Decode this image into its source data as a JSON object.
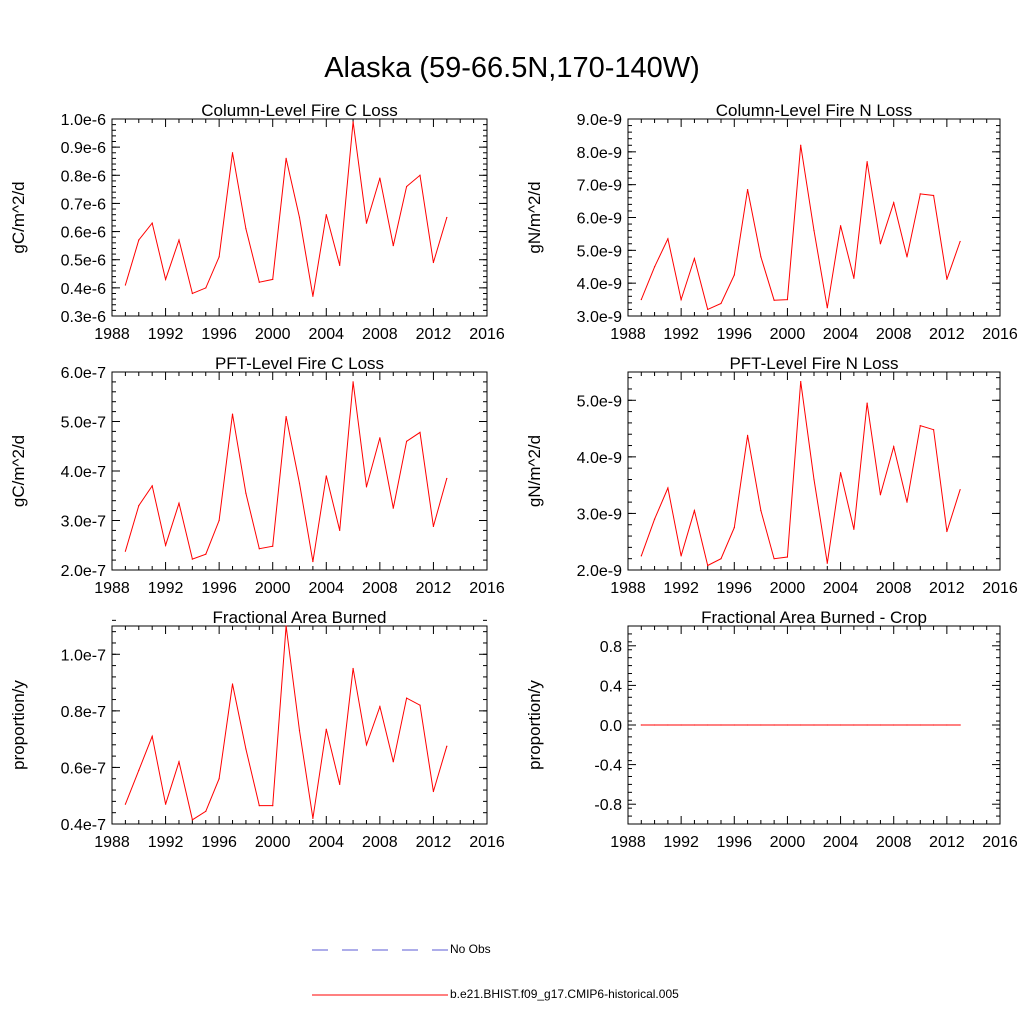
{
  "title": "Alaska (59-66.5N,170-140W)",
  "legend": {
    "items": [
      {
        "label": "No Obs",
        "color": "#5b5bd6",
        "style": "dashed"
      },
      {
        "label": "b.e21.BHIST.f09_g17.CMIP6-historical.005",
        "color": "#ff0000",
        "style": "solid"
      }
    ]
  },
  "chart_data": [
    {
      "type": "line",
      "title": "Column-Level Fire C Loss",
      "xlabel": "",
      "ylabel": "gC/m^2/d",
      "xlim": [
        1988,
        2016
      ],
      "ylim": [
        3e-07,
        1e-06
      ],
      "xticks": [
        "1988",
        "1992",
        "1996",
        "2000",
        "2004",
        "2008",
        "2012",
        "2016"
      ],
      "yticks": [
        {
          "v": 3e-07,
          "label": "0.3e-6"
        },
        {
          "v": 4e-07,
          "label": "0.4e-6"
        },
        {
          "v": 5e-07,
          "label": "0.5e-6"
        },
        {
          "v": 6e-07,
          "label": "0.6e-6"
        },
        {
          "v": 7e-07,
          "label": "0.7e-6"
        },
        {
          "v": 8e-07,
          "label": "0.8e-6"
        },
        {
          "v": 9e-07,
          "label": "0.9e-6"
        },
        {
          "v": 1e-06,
          "label": "1.0e-6"
        }
      ],
      "minor_step": 2e-08,
      "color": "#ff0000",
      "x": [
        1989,
        1990,
        1991,
        1992,
        1993,
        1994,
        1995,
        1996,
        1997,
        1998,
        1999,
        2000,
        2001,
        2002,
        2003,
        2004,
        2005,
        2006,
        2007,
        2008,
        2009,
        2010,
        2011,
        2012,
        2013
      ],
      "y": [
        4.1e-07,
        5.7e-07,
        6.3e-07,
        4.3e-07,
        5.7e-07,
        3.8e-07,
        4e-07,
        5.1e-07,
        8.8e-07,
        6.1e-07,
        4.2e-07,
        4.3e-07,
        8.6e-07,
        6.5e-07,
        3.7e-07,
        6.6e-07,
        4.8e-07,
        9.9e-07,
        6.3e-07,
        7.9e-07,
        5.5e-07,
        7.6e-07,
        8e-07,
        4.9e-07,
        6.5e-07
      ]
    },
    {
      "type": "line",
      "title": "Column-Level Fire N Loss",
      "xlabel": "",
      "ylabel": "gN/m^2/d",
      "xlim": [
        1988,
        2016
      ],
      "ylim": [
        3e-09,
        9e-09
      ],
      "xticks": [
        "1988",
        "1992",
        "1996",
        "2000",
        "2004",
        "2008",
        "2012",
        "2016"
      ],
      "yticks": [
        {
          "v": 3e-09,
          "label": "3.0e-9"
        },
        {
          "v": 4e-09,
          "label": "4.0e-9"
        },
        {
          "v": 5e-09,
          "label": "5.0e-9"
        },
        {
          "v": 6e-09,
          "label": "6.0e-9"
        },
        {
          "v": 7e-09,
          "label": "7.0e-9"
        },
        {
          "v": 8e-09,
          "label": "8.0e-9"
        },
        {
          "v": 9e-09,
          "label": "9.0e-9"
        }
      ],
      "minor_step": 2e-10,
      "color": "#ff0000",
      "x": [
        1989,
        1990,
        1991,
        1992,
        1993,
        1994,
        1995,
        1996,
        1997,
        1998,
        1999,
        2000,
        2001,
        2002,
        2003,
        2004,
        2005,
        2006,
        2007,
        2008,
        2009,
        2010,
        2011,
        2012,
        2013
      ],
      "y": [
        3.5e-09,
        4.5e-09,
        5.35e-09,
        3.5e-09,
        4.75e-09,
        3.2e-09,
        3.38e-09,
        4.25e-09,
        6.85e-09,
        4.8e-09,
        3.48e-09,
        3.5e-09,
        8.2e-09,
        5.6e-09,
        3.25e-09,
        5.75e-09,
        4.15e-09,
        7.7e-09,
        5.2e-09,
        6.45e-09,
        4.8e-09,
        6.72e-09,
        6.67e-09,
        4.12e-09,
        5.27e-09
      ]
    },
    {
      "type": "line",
      "title": "PFT-Level Fire C Loss",
      "xlabel": "",
      "ylabel": "gC/m^2/d",
      "xlim": [
        1988,
        2016
      ],
      "ylim": [
        2e-07,
        6e-07
      ],
      "xticks": [
        "1988",
        "1992",
        "1996",
        "2000",
        "2004",
        "2008",
        "2012",
        "2016"
      ],
      "yticks": [
        {
          "v": 2e-07,
          "label": "2.0e-7"
        },
        {
          "v": 3e-07,
          "label": "3.0e-7"
        },
        {
          "v": 4e-07,
          "label": "4.0e-7"
        },
        {
          "v": 5e-07,
          "label": "5.0e-7"
        },
        {
          "v": 6e-07,
          "label": "6.0e-7"
        }
      ],
      "minor_step": 2e-08,
      "color": "#ff0000",
      "x": [
        1989,
        1990,
        1991,
        1992,
        1993,
        1994,
        1995,
        1996,
        1997,
        1998,
        1999,
        2000,
        2001,
        2002,
        2003,
        2004,
        2005,
        2006,
        2007,
        2008,
        2009,
        2010,
        2011,
        2012,
        2013
      ],
      "y": [
        2.38e-07,
        3.3e-07,
        3.7e-07,
        2.5e-07,
        3.35e-07,
        2.22e-07,
        2.32e-07,
        3e-07,
        5.15e-07,
        3.55e-07,
        2.43e-07,
        2.48e-07,
        5.1e-07,
        3.75e-07,
        2.17e-07,
        3.9e-07,
        2.8e-07,
        5.8e-07,
        3.68e-07,
        4.67e-07,
        3.25e-07,
        4.6e-07,
        4.78e-07,
        2.88e-07,
        3.85e-07
      ]
    },
    {
      "type": "line",
      "title": "PFT-Level Fire N Loss",
      "xlabel": "",
      "ylabel": "gN/m^2/d",
      "xlim": [
        1988,
        2016
      ],
      "ylim": [
        2e-09,
        5.5e-09
      ],
      "xticks": [
        "1988",
        "1992",
        "1996",
        "2000",
        "2004",
        "2008",
        "2012",
        "2016"
      ],
      "yticks": [
        {
          "v": 2e-09,
          "label": "2.0e-9"
        },
        {
          "v": 3e-09,
          "label": "3.0e-9"
        },
        {
          "v": 4e-09,
          "label": "4.0e-9"
        },
        {
          "v": 5e-09,
          "label": "5.0e-9"
        }
      ],
      "minor_step": 2e-10,
      "color": "#ff0000",
      "x": [
        1989,
        1990,
        1991,
        1992,
        1993,
        1994,
        1995,
        1996,
        1997,
        1998,
        1999,
        2000,
        2001,
        2002,
        2003,
        2004,
        2005,
        2006,
        2007,
        2008,
        2009,
        2010,
        2011,
        2012,
        2013
      ],
      "y": [
        2.25e-09,
        2.9e-09,
        3.45e-09,
        2.25e-09,
        3.05e-09,
        2.08e-09,
        2.2e-09,
        2.75e-09,
        4.38e-09,
        3.05e-09,
        2.2e-09,
        2.23e-09,
        5.33e-09,
        3.6e-09,
        2.12e-09,
        3.72e-09,
        2.72e-09,
        4.95e-09,
        3.33e-09,
        4.18e-09,
        3.2e-09,
        4.55e-09,
        4.48e-09,
        2.68e-09,
        3.42e-09
      ]
    },
    {
      "type": "line",
      "title": "Fractional Area Burned",
      "xlabel": "",
      "ylabel": "proportion/y",
      "xlim": [
        1988,
        2016
      ],
      "ylim": [
        4e-08,
        1.1e-07
      ],
      "xticks": [
        "1988",
        "1992",
        "1996",
        "2000",
        "2004",
        "2008",
        "2012",
        "2016"
      ],
      "yticks": [
        {
          "v": 4e-08,
          "label": "0.4e-7"
        },
        {
          "v": 6e-08,
          "label": "0.6e-7"
        },
        {
          "v": 8e-08,
          "label": "0.8e-7"
        },
        {
          "v": 1e-07,
          "label": "1.0e-7"
        }
      ],
      "minor_step": 4e-09,
      "color": "#ff0000",
      "x": [
        1989,
        1990,
        1991,
        1992,
        1993,
        1994,
        1995,
        1996,
        1997,
        1998,
        1999,
        2000,
        2001,
        2002,
        2003,
        2004,
        2005,
        2006,
        2007,
        2008,
        2009,
        2010,
        2011,
        2012,
        2013
      ],
      "y": [
        4.7e-08,
        5.9e-08,
        7.1e-08,
        4.7e-08,
        6.2e-08,
        4.15e-08,
        4.45e-08,
        5.6e-08,
        8.95e-08,
        6.65e-08,
        4.65e-08,
        4.65e-08,
        1.1e-07,
        7.3e-08,
        4.2e-08,
        7.35e-08,
        5.4e-08,
        9.5e-08,
        6.8e-08,
        8.15e-08,
        6.2e-08,
        8.45e-08,
        8.2e-08,
        5.15e-08,
        6.75e-08
      ]
    },
    {
      "type": "line",
      "title": "Fractional Area Burned - Crop",
      "xlabel": "",
      "ylabel": "proportion/y",
      "xlim": [
        1988,
        2016
      ],
      "ylim": [
        -1.0,
        1.0
      ],
      "xticks": [
        "1988",
        "1992",
        "1996",
        "2000",
        "2004",
        "2008",
        "2012",
        "2016"
      ],
      "yticks": [
        {
          "v": -0.8,
          "label": "-0.8"
        },
        {
          "v": -0.4,
          "label": "-0.4"
        },
        {
          "v": 0.0,
          "label": "0.0"
        },
        {
          "v": 0.4,
          "label": "0.4"
        },
        {
          "v": 0.8,
          "label": "0.8"
        }
      ],
      "minor_step": 0.08,
      "color": "#ff0000",
      "x": [
        1989,
        1990,
        1991,
        1992,
        1993,
        1994,
        1995,
        1996,
        1997,
        1998,
        1999,
        2000,
        2001,
        2002,
        2003,
        2004,
        2005,
        2006,
        2007,
        2008,
        2009,
        2010,
        2011,
        2012,
        2013
      ],
      "y": [
        0,
        0,
        0,
        0,
        0,
        0,
        0,
        0,
        0,
        0,
        0,
        0,
        0,
        0,
        0,
        0,
        0,
        0,
        0,
        0,
        0,
        0,
        0,
        0,
        0
      ]
    }
  ]
}
